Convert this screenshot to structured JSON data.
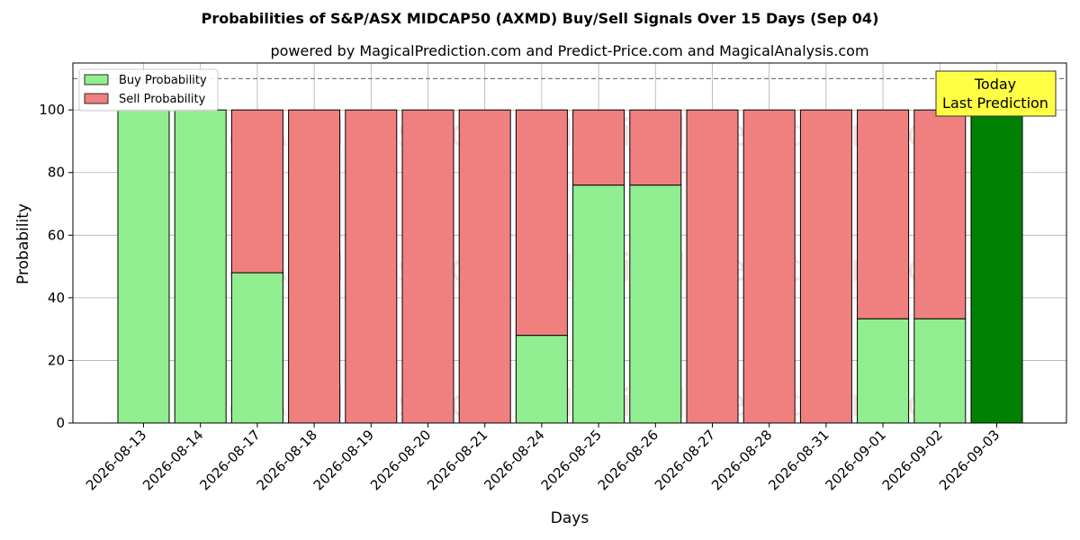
{
  "chart_data": {
    "type": "bar",
    "stacked": true,
    "title": "Probabilities of S&P/ASX MIDCAP50 (AXMD) Buy/Sell Signals Over 15 Days (Sep 04)",
    "subtitle": "powered by MagicalPrediction.com and Predict-Price.com and MagicalAnalysis.com",
    "xlabel": "Days",
    "ylabel": "Probability",
    "ylim": [
      0,
      115
    ],
    "yticks": [
      0,
      20,
      40,
      60,
      80,
      100
    ],
    "reference_line": 110,
    "grid": true,
    "legend_position": "top-left",
    "categories": [
      "2026-08-13",
      "2026-08-14",
      "2026-08-17",
      "2026-08-18",
      "2026-08-19",
      "2026-08-20",
      "2026-08-21",
      "2026-08-24",
      "2026-08-25",
      "2026-08-26",
      "2026-08-27",
      "2026-08-28",
      "2026-08-31",
      "2026-09-01",
      "2026-09-02",
      "2026-09-03"
    ],
    "series": [
      {
        "name": "Buy Probability",
        "color": "#90ee90",
        "values": [
          100,
          100,
          48,
          0,
          0,
          0,
          0,
          28,
          76,
          76,
          0,
          0,
          0,
          33.3,
          33.3,
          100
        ]
      },
      {
        "name": "Sell Probability",
        "color": "#f08080",
        "values": [
          0,
          0,
          52,
          100,
          100,
          100,
          100,
          72,
          24,
          24,
          100,
          100,
          100,
          66.7,
          66.7,
          0
        ]
      }
    ],
    "highlight": {
      "category": "2026-09-03",
      "color": "#008000",
      "annotation_line1": "Today",
      "annotation_line2": "Last Prediction",
      "annotation_bg": "#ffff44"
    },
    "watermarks": [
      "MagicalAnalysis.com",
      "MagicalPrediction.com"
    ]
  }
}
